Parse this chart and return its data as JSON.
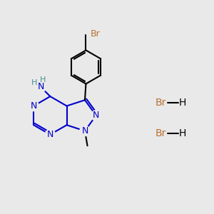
{
  "bg_color": "#e9e9e9",
  "black": "#000000",
  "blue": "#0000cc",
  "br_color": "#b87333",
  "teal": "#4a9090",
  "bond_lw": 1.5,
  "font_size_atoms": 9,
  "font_size_hbr": 10,
  "xlim": [
    0,
    10
  ],
  "ylim": [
    0,
    10
  ]
}
